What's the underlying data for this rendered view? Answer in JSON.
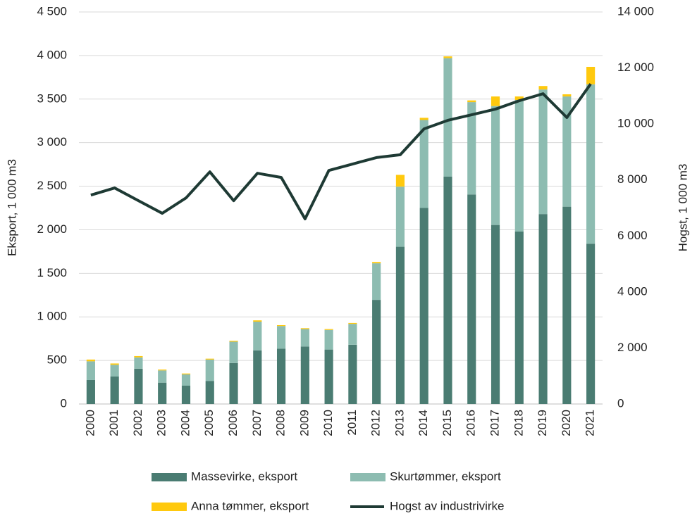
{
  "chart_data": {
    "type": "bar",
    "categories": [
      "2000",
      "2001",
      "2002",
      "2003",
      "2004",
      "2005",
      "2006",
      "2007",
      "2008",
      "2009",
      "2010",
      "2011",
      "2012",
      "2013",
      "2014",
      "2015",
      "2016",
      "2017",
      "2018",
      "2019",
      "2020",
      "2021"
    ],
    "series": [
      {
        "name": "Massevirke, eksport",
        "color": "#4a7c72",
        "values": [
          275,
          315,
          405,
          245,
          210,
          265,
          470,
          615,
          635,
          660,
          625,
          680,
          1195,
          1805,
          2250,
          2610,
          2405,
          2055,
          1980,
          2180,
          2265,
          1840
        ]
      },
      {
        "name": "Skurtømmer, eksport",
        "color": "#8dbcb1",
        "values": [
          215,
          135,
          130,
          140,
          130,
          245,
          245,
          330,
          260,
          200,
          225,
          240,
          420,
          690,
          1010,
          1360,
          1060,
          1365,
          1510,
          1430,
          1265,
          1830
        ]
      },
      {
        "name": "Anna tømmer, eksport",
        "color": "#ffc90e",
        "values": [
          20,
          15,
          15,
          10,
          10,
          10,
          10,
          15,
          10,
          10,
          10,
          10,
          15,
          135,
          25,
          20,
          20,
          110,
          40,
          40,
          25,
          200
        ]
      },
      {
        "name": "Hogst av industrivirke",
        "color": "#1e3a34",
        "type": "line",
        "axis": "y2",
        "values": [
          7460,
          7715,
          7260,
          6810,
          7360,
          8290,
          7260,
          8240,
          8090,
          6610,
          8340,
          8570,
          8800,
          8900,
          9825,
          10130,
          10330,
          10530,
          10830,
          11080,
          10230,
          11430
        ]
      }
    ],
    "stacked": true,
    "ylabel": "Eksport, 1 000 m3",
    "y2label": "Hogst, 1 000 m3",
    "ylim": [
      0,
      4500
    ],
    "yticks": [
      0,
      500,
      {
        "value": 1000,
        "label": "1 000"
      },
      {
        "value": 1500,
        "label": "1 500"
      },
      {
        "value": 2000,
        "label": "2 000"
      },
      {
        "value": 2500,
        "label": "2 500"
      },
      {
        "value": 3000,
        "label": "3 000"
      },
      {
        "value": 3500,
        "label": "3 500"
      },
      {
        "value": 4000,
        "label": "4 000"
      },
      {
        "value": 4500,
        "label": "4 500"
      }
    ],
    "y2lim": [
      0,
      14000
    ],
    "y2ticks": [
      0,
      {
        "value": 2000,
        "label": "2 000"
      },
      {
        "value": 4000,
        "label": "4 000"
      },
      {
        "value": 6000,
        "label": "6 000"
      },
      {
        "value": 8000,
        "label": "8 000"
      },
      {
        "value": 10000,
        "label": "10 000"
      },
      {
        "value": 12000,
        "label": "12 000"
      },
      {
        "value": 14000,
        "label": "14 000"
      }
    ],
    "grid": true,
    "legend": "bottom"
  }
}
